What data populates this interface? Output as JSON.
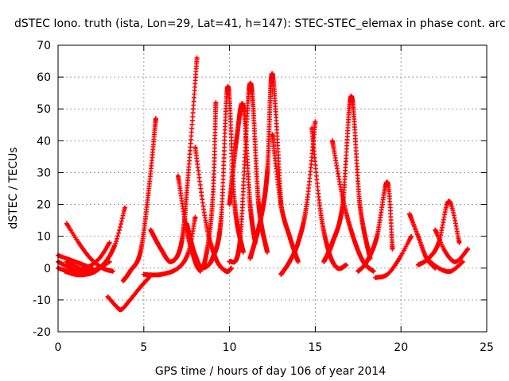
{
  "chart_data": {
    "type": "scatter",
    "title": "dSTEC Iono. truth (ista, Lon=29, Lat=41, h=147): STEC-STEC_elemax in phase cont. arc",
    "xlabel": "GPS time / hours of day 106 of year 2014",
    "ylabel": "dSTEC  / TECUs",
    "xlim": [
      0,
      25
    ],
    "ylim": [
      -20,
      70
    ],
    "xticks": [
      "0",
      "5",
      "10",
      "15",
      "20",
      "25"
    ],
    "yticks": [
      "-20",
      "-10",
      "0",
      "10",
      "20",
      "30",
      "40",
      "50",
      "60",
      "70"
    ],
    "grid": true,
    "marker": "+",
    "color": "#ff0000",
    "arcs": [
      {
        "x": [
          0.0,
          0.5,
          1.0,
          1.5,
          2.0
        ],
        "y": [
          4,
          3,
          2,
          1,
          0
        ]
      },
      {
        "x": [
          0.0,
          0.6,
          1.2,
          1.8,
          2.4,
          3.0
        ],
        "y": [
          0,
          -1,
          -1.5,
          -1,
          0,
          2
        ]
      },
      {
        "x": [
          0.4,
          1.0,
          1.6,
          2.2,
          2.8,
          3.3
        ],
        "y": [
          -1,
          -2,
          -2,
          -1,
          2,
          7
        ]
      },
      {
        "x": [
          0.0,
          0.8,
          1.6,
          2.4,
          3.0
        ],
        "y": [
          2,
          0,
          0,
          3,
          8
        ]
      },
      {
        "x": [
          0.5,
          1.2,
          1.9,
          2.6,
          3.3,
          3.9
        ],
        "y": [
          2,
          0,
          -1,
          1,
          7,
          19
        ]
      },
      {
        "x": [
          0.5,
          1.2,
          1.9,
          2.6,
          3.2
        ],
        "y": [
          14,
          8,
          3,
          0,
          -1
        ]
      },
      {
        "x": [
          2.9,
          3.4,
          3.7,
          4.2,
          4.8,
          5.3
        ],
        "y": [
          -9,
          -12,
          -13,
          -10,
          -6,
          -3
        ]
      },
      {
        "x": [
          3.8,
          4.2,
          4.8,
          5.3,
          5.7
        ],
        "y": [
          -4,
          -1,
          5,
          25,
          47
        ]
      },
      {
        "x": [
          5.4,
          6.0,
          6.6,
          7.2,
          7.6,
          8.1
        ],
        "y": [
          12,
          6,
          2,
          8,
          30,
          66
        ]
      },
      {
        "x": [
          5.0,
          6.0,
          7.0,
          7.6,
          8.0
        ],
        "y": [
          -2,
          -2,
          0,
          5,
          16
        ]
      },
      {
        "x": [
          7.0,
          7.5,
          8.0,
          8.3
        ],
        "y": [
          29,
          12,
          2,
          -1
        ]
      },
      {
        "x": [
          7.5,
          8.0,
          8.5,
          9.0,
          9.2
        ],
        "y": [
          14,
          4,
          1,
          20,
          52
        ]
      },
      {
        "x": [
          8.0,
          8.6,
          9.2,
          9.8,
          10.1
        ],
        "y": [
          38,
          15,
          3,
          -1,
          0
        ]
      },
      {
        "x": [
          8.5,
          9.0,
          9.5,
          9.9,
          10.3,
          10.8
        ],
        "y": [
          0,
          3,
          15,
          57,
          20,
          5
        ]
      },
      {
        "x": [
          10.0,
          10.4,
          10.8,
          11.2,
          11.5
        ],
        "y": [
          20,
          40,
          51,
          20,
          8
        ]
      },
      {
        "x": [
          10.0,
          10.6,
          11.2,
          11.7,
          12.2
        ],
        "y": [
          2,
          8,
          58,
          20,
          5
        ]
      },
      {
        "x": [
          11.2,
          11.8,
          12.2,
          12.5,
          13.0
        ],
        "y": [
          3,
          15,
          30,
          61,
          20
        ]
      },
      {
        "x": [
          12.5,
          13.0,
          13.5,
          14.0
        ],
        "y": [
          42,
          20,
          10,
          2
        ]
      },
      {
        "x": [
          13.0,
          13.5,
          14.0,
          14.5,
          15.0
        ],
        "y": [
          -2,
          2,
          8,
          20,
          46
        ]
      },
      {
        "x": [
          14.8,
          15.3,
          15.8,
          16.3,
          16.8
        ],
        "y": [
          44,
          18,
          5,
          0,
          1
        ]
      },
      {
        "x": [
          15.5,
          16.0,
          16.6,
          17.1,
          17.6,
          18.2
        ],
        "y": [
          2,
          8,
          20,
          54,
          20,
          3
        ]
      },
      {
        "x": [
          16.0,
          16.6,
          17.2,
          17.8,
          18.4
        ],
        "y": [
          40,
          22,
          10,
          2,
          -1
        ]
      },
      {
        "x": [
          17.5,
          18.0,
          18.6,
          19.2,
          19.5
        ],
        "y": [
          -1,
          2,
          10,
          27,
          6
        ]
      },
      {
        "x": [
          18.5,
          19.2,
          19.9,
          20.6
        ],
        "y": [
          -3,
          -2,
          3,
          10
        ]
      },
      {
        "x": [
          20.5,
          21.0,
          21.5,
          22.0
        ],
        "y": [
          17,
          10,
          3,
          0
        ]
      },
      {
        "x": [
          21.0,
          21.6,
          22.2,
          22.8,
          23.4
        ],
        "y": [
          1,
          3,
          8,
          21,
          8
        ]
      },
      {
        "x": [
          22.0,
          22.6,
          23.2,
          23.9
        ],
        "y": [
          12,
          5,
          2,
          6
        ]
      },
      {
        "x": [
          21.5,
          22.2,
          22.9,
          23.6
        ],
        "y": [
          3,
          0,
          -1,
          2
        ]
      }
    ]
  }
}
